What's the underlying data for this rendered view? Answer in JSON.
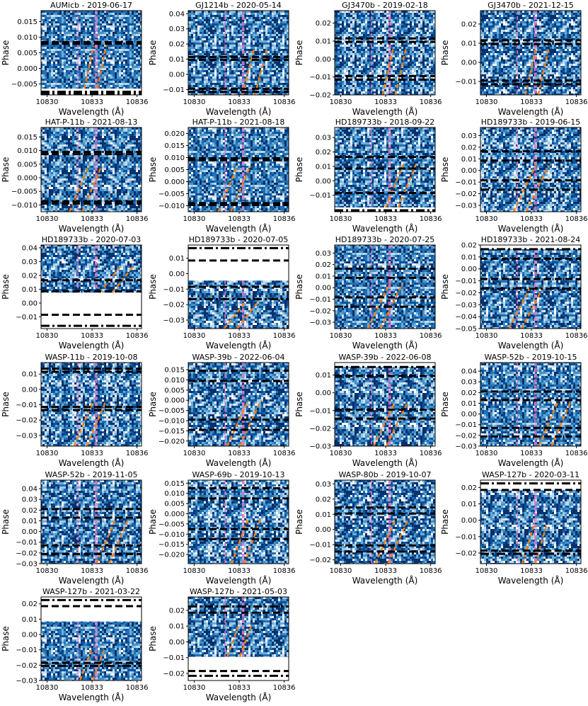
{
  "figure": {
    "xlabel": "Wavelength (Å)",
    "ylabel": "Phase",
    "colormap": [
      "#08306b",
      "#08519c",
      "#2171b5",
      "#4292c6",
      "#6baed6",
      "#9ecae1",
      "#c6dbef",
      "#ffffff"
    ],
    "line_colors": {
      "contact": "#000000",
      "planet_track": "#ff7f0e",
      "stellar_lines": "#e377c2"
    }
  },
  "chart_data": [
    {
      "type": "heatmap",
      "title": "AUMicb - 2019-06-17",
      "xlim": [
        10829.6,
        10836.3
      ],
      "ylim": [
        -0.0085,
        0.0185
      ],
      "xticks": [
        "10830",
        "10833",
        "10836"
      ],
      "yticks": [
        -0.005,
        0.0,
        0.005,
        0.01,
        0.015
      ],
      "ytick_labels": [
        "−0.005",
        "0.000",
        "0.005",
        "0.010",
        "0.015"
      ],
      "data_range": [
        -0.0065,
        0.0185
      ],
      "dashed": [
        0.0084,
        0.0079
      ],
      "dashdot": [
        -0.0075,
        -0.0082
      ],
      "track": [
        10832.5,
        10833.1
      ]
    },
    {
      "type": "heatmap",
      "title": "GJ1214b - 2020-05-14",
      "xlim": [
        10829.6,
        10836.3
      ],
      "ylim": [
        -0.0135,
        0.042
      ],
      "xticks": [
        "10830",
        "10833",
        "10836"
      ],
      "yticks": [
        -0.01,
        0.0,
        0.01,
        0.02,
        0.03,
        0.04
      ],
      "ytick_labels": [
        "−0.01",
        "0.00",
        "0.01",
        "0.02",
        "0.03",
        "0.04"
      ],
      "data_range": [
        -0.0135,
        0.042
      ],
      "dashed": [
        0.0115,
        0.0095,
        -0.0095,
        -0.0115
      ],
      "dashdot": [],
      "track": [
        10833.2,
        10834.0
      ]
    },
    {
      "type": "heatmap",
      "title": "GJ3470b - 2019-02-18",
      "xlim": [
        10829.6,
        10836.3
      ],
      "ylim": [
        -0.02,
        0.027
      ],
      "xticks": [
        "10830",
        "10833",
        "10836"
      ],
      "yticks": [
        -0.02,
        -0.01,
        0.0,
        0.01,
        0.02
      ],
      "ytick_labels": [
        "−0.02",
        "−0.01",
        "0.00",
        "0.01",
        "0.02"
      ],
      "data_range": [
        -0.02,
        0.027
      ],
      "dashed": [
        0.0115,
        0.0095,
        -0.0095,
        -0.0115
      ],
      "dashdot": [],
      "track": [
        10832.8,
        10833.5
      ]
    },
    {
      "type": "heatmap",
      "title": "GJ3470b - 2021-12-15",
      "xlim": [
        10829.6,
        10836.3
      ],
      "ylim": [
        -0.017,
        0.027
      ],
      "xticks": [
        "10830",
        "10833",
        "10836"
      ],
      "yticks": [
        -0.01,
        0.0,
        0.01,
        0.02
      ],
      "ytick_labels": [
        "−0.01",
        "0.00",
        "0.01",
        "0.02"
      ],
      "data_range": [
        -0.017,
        0.027
      ],
      "dashed": [
        0.0115,
        0.0095,
        -0.0095,
        -0.0115
      ],
      "dashdot": [],
      "track": [
        10832.6,
        10833.3
      ]
    },
    {
      "type": "heatmap",
      "title": "HAT-P-11b - 2021-08-13",
      "xlim": [
        10829.6,
        10836.3
      ],
      "ylim": [
        -0.0125,
        0.0185
      ],
      "xticks": [
        "10830",
        "10833",
        "10836"
      ],
      "yticks": [
        -0.01,
        -0.005,
        0.0,
        0.005,
        0.01,
        0.015
      ],
      "ytick_labels": [
        "−0.010",
        "−0.005",
        "0.000",
        "0.005",
        "0.010",
        "0.015"
      ],
      "data_range": [
        -0.0125,
        0.0185
      ],
      "dashed": [
        0.0095,
        0.0087,
        -0.0087,
        -0.0095
      ],
      "dashdot": [],
      "track": [
        10831.5,
        10832.8
      ]
    },
    {
      "type": "heatmap",
      "title": "HAT-P-11b - 2021-08-18",
      "xlim": [
        10829.6,
        10836.3
      ],
      "ylim": [
        -0.0125,
        0.0225
      ],
      "xticks": [
        "10830",
        "10833",
        "10836"
      ],
      "yticks": [
        -0.01,
        -0.005,
        0.0,
        0.005,
        0.01,
        0.015,
        0.02
      ],
      "ytick_labels": [
        "−0.010",
        "−0.005",
        "0.000",
        "0.005",
        "0.010",
        "0.015",
        "0.020"
      ],
      "data_range": [
        -0.0125,
        0.0225
      ],
      "dashed": [
        0.0097,
        0.0089,
        -0.0089,
        -0.0097
      ],
      "dashdot": [],
      "track": [
        10831.6,
        10832.9
      ]
    },
    {
      "type": "heatmap",
      "title": "HD189733b - 2018-09-22",
      "xlim": [
        10829.6,
        10836.3
      ],
      "ylim": [
        -0.0215,
        0.037
      ],
      "xticks": [
        "10830",
        "10833",
        "10836"
      ],
      "yticks": [
        -0.01,
        0.0,
        0.01,
        0.02,
        0.03
      ],
      "ytick_labels": [
        "−0.01",
        "0.00",
        "0.01",
        "0.02",
        "0.03"
      ],
      "data_range": [
        -0.0185,
        0.037
      ],
      "dashed": [
        0.0165,
        0.0085,
        -0.0085
      ],
      "dashdot": [
        -0.0205
      ],
      "track": [
        10833.0,
        10834.2
      ]
    },
    {
      "type": "heatmap",
      "title": "HD189733b - 2019-06-15",
      "xlim": [
        10829.6,
        10836.3
      ],
      "ylim": [
        -0.0355,
        0.037
      ],
      "xticks": [
        "10830",
        "10833",
        "10836"
      ],
      "yticks": [
        -0.03,
        -0.02,
        -0.01,
        0.0,
        0.01,
        0.02,
        0.03
      ],
      "ytick_labels": [
        "−0.03",
        "−0.02",
        "−0.01",
        "0.00",
        "0.01",
        "0.02",
        "0.03"
      ],
      "data_range": [
        -0.0355,
        0.037
      ],
      "dashed": [
        0.0165,
        0.0085,
        -0.0085
      ],
      "dashdot": [
        -0.0165
      ],
      "track": [
        10831.8,
        10833.3
      ]
    },
    {
      "type": "heatmap",
      "title": "HD189733b - 2020-07-03",
      "xlim": [
        10829.6,
        10836.3
      ],
      "ylim": [
        -0.0185,
        0.042
      ],
      "xticks": [
        "10830",
        "10833",
        "10836"
      ],
      "yticks": [
        -0.01,
        0.0,
        0.01,
        0.02,
        0.03,
        0.04
      ],
      "ytick_labels": [
        "−0.01",
        "0.00",
        "0.01",
        "0.02",
        "0.03",
        "0.04"
      ],
      "data_range": [
        0.0075,
        0.042
      ],
      "dashed": [
        0.0165,
        0.0085,
        -0.0085
      ],
      "dashdot": [
        -0.0165
      ],
      "track": [
        10833.5,
        10834.9
      ]
    },
    {
      "type": "heatmap",
      "title": "HD189733b - 2020-07-05",
      "xlim": [
        10829.6,
        10836.3
      ],
      "ylim": [
        -0.0355,
        0.0185
      ],
      "xticks": [
        "10830",
        "10833",
        "10836"
      ],
      "yticks": [
        -0.03,
        -0.02,
        -0.01,
        0.0,
        0.01
      ],
      "ytick_labels": [
        "−0.03",
        "−0.02",
        "−0.01",
        "0.00",
        "0.01"
      ],
      "data_range": [
        -0.0355,
        -0.0045
      ],
      "dashed": [
        0.0085,
        -0.0085
      ],
      "dashdot": [
        0.0165,
        -0.0165
      ],
      "track": [
        10832.0,
        10833.4
      ]
    },
    {
      "type": "heatmap",
      "title": "HD189733b - 2020-07-25",
      "xlim": [
        10829.6,
        10836.3
      ],
      "ylim": [
        -0.0355,
        0.037
      ],
      "xticks": [
        "10830",
        "10833",
        "10836"
      ],
      "yticks": [
        -0.03,
        -0.02,
        -0.01,
        0.0,
        0.01,
        0.02,
        0.03
      ],
      "ytick_labels": [
        "−0.03",
        "−0.02",
        "−0.01",
        "0.00",
        "0.01",
        "0.02",
        "0.03"
      ],
      "data_range": [
        -0.0355,
        0.037
      ],
      "dashed": [
        0.0165,
        0.0085,
        -0.0085
      ],
      "dashdot": [
        -0.0165
      ],
      "track": [
        10831.8,
        10833.3
      ]
    },
    {
      "type": "heatmap",
      "title": "HD189733b - 2021-08-24",
      "xlim": [
        10829.6,
        10836.3
      ],
      "ylim": [
        -0.05,
        0.02
      ],
      "xticks": [
        "10830",
        "10833",
        "10836"
      ],
      "yticks": [
        -0.05,
        -0.04,
        -0.03,
        -0.02,
        -0.01,
        0.0,
        0.01,
        0.02
      ],
      "ytick_labels": [
        "−0.05",
        "−0.04",
        "−0.03",
        "−0.02",
        "−0.01",
        "0.00",
        "0.01",
        "0.02"
      ],
      "data_range": [
        -0.05,
        0.0165
      ],
      "dashed": [
        0.0085,
        -0.0085
      ],
      "dashdot": [
        0.0165,
        -0.0165
      ],
      "track": [
        10831.5,
        10833.0
      ]
    },
    {
      "type": "heatmap",
      "title": "WASP-11b - 2019-10-08",
      "xlim": [
        10829.6,
        10836.3
      ],
      "ylim": [
        -0.037,
        0.0175
      ],
      "xticks": [
        "10830",
        "10833",
        "10836"
      ],
      "yticks": [
        -0.03,
        -0.02,
        -0.01,
        0.0,
        0.01
      ],
      "ytick_labels": [
        "−0.03",
        "−0.02",
        "−0.01",
        "0.00",
        "0.01"
      ],
      "data_range": [
        -0.037,
        0.0175
      ],
      "dashed": [
        0.0135,
        0.0115,
        -0.0115,
        -0.0135
      ],
      "dashdot": [],
      "track": [
        10831.8,
        10833.1
      ]
    },
    {
      "type": "heatmap",
      "title": "WASP-39b - 2022-06-04",
      "xlim": [
        10829.6,
        10836.3
      ],
      "ylim": [
        -0.0225,
        0.0185
      ],
      "xticks": [
        "10830",
        "10833",
        "10836"
      ],
      "yticks": [
        -0.02,
        -0.015,
        -0.01,
        -0.005,
        0.0,
        0.005,
        0.01,
        0.015
      ],
      "ytick_labels": [
        "−0.020",
        "−0.015",
        "−0.010",
        "−0.005",
        "0.000",
        "0.005",
        "0.010",
        "0.015"
      ],
      "data_range": [
        -0.0225,
        0.0185
      ],
      "dashed": [
        0.0145,
        0.0095,
        -0.0095,
        -0.0145
      ],
      "dashdot": [],
      "track": [
        10832.2,
        10833.6
      ]
    },
    {
      "type": "heatmap",
      "title": "WASP-39b - 2022-06-08",
      "xlim": [
        10829.6,
        10836.3
      ],
      "ylim": [
        -0.03,
        0.017
      ],
      "xticks": [
        "10830",
        "10833",
        "10836"
      ],
      "yticks": [
        -0.03,
        -0.02,
        -0.01,
        0.0,
        0.01
      ],
      "ytick_labels": [
        "−0.03",
        "−0.02",
        "−0.01",
        "0.00",
        "0.01"
      ],
      "data_range": [
        -0.03,
        0.0145
      ],
      "dashed": [
        0.0095,
        -0.0095,
        -0.0145
      ],
      "dashdot": [
        0.0145
      ],
      "track": [
        10832.2,
        10833.6
      ]
    },
    {
      "type": "heatmap",
      "title": "WASP-52b - 2019-10-15",
      "xlim": [
        10829.6,
        10836.3
      ],
      "ylim": [
        -0.03,
        0.048
      ],
      "xticks": [
        "10830",
        "10833",
        "10836"
      ],
      "yticks": [
        -0.03,
        -0.02,
        -0.01,
        0.0,
        0.01,
        0.02,
        0.03,
        0.04
      ],
      "ytick_labels": [
        "−0.03",
        "−0.02",
        "−0.01",
        "0.00",
        "0.01",
        "0.02",
        "0.03",
        "0.04"
      ],
      "data_range": [
        -0.03,
        0.048
      ],
      "dashed": [
        0.021,
        0.013,
        -0.013,
        -0.021
      ],
      "dashdot": [],
      "track": [
        10833.5,
        10834.8
      ]
    },
    {
      "type": "heatmap",
      "title": "WASP-52b - 2019-11-05",
      "xlim": [
        10829.6,
        10836.3
      ],
      "ylim": [
        -0.03,
        0.048
      ],
      "xticks": [
        "10830",
        "10833",
        "10836"
      ],
      "yticks": [
        -0.03,
        -0.02,
        -0.01,
        0.0,
        0.01,
        0.02,
        0.03,
        0.04
      ],
      "ytick_labels": [
        "−0.03",
        "−0.02",
        "−0.01",
        "0.00",
        "0.01",
        "0.02",
        "0.03",
        "0.04"
      ],
      "data_range": [
        -0.03,
        0.048
      ],
      "dashed": [
        0.021,
        0.013,
        -0.013,
        -0.021
      ],
      "dashdot": [],
      "track": [
        10833.3,
        10834.6
      ]
    },
    {
      "type": "heatmap",
      "title": "WASP-69b - 2019-10-13",
      "xlim": [
        10829.6,
        10836.3
      ],
      "ylim": [
        -0.0245,
        0.0165
      ],
      "xticks": [
        "10830",
        "10833",
        "10836"
      ],
      "yticks": [
        -0.02,
        -0.015,
        -0.01,
        -0.005,
        0.0,
        0.005,
        0.01,
        0.015
      ],
      "ytick_labels": [
        "−0.020",
        "−0.015",
        "−0.010",
        "−0.005",
        "0.000",
        "0.005",
        "0.010",
        "0.015"
      ],
      "data_range": [
        -0.0245,
        0.0165
      ],
      "dashed": [
        0.0125,
        0.0075,
        -0.0075,
        -0.0125
      ],
      "dashdot": [],
      "track": [
        10832.5,
        10833.6
      ]
    },
    {
      "type": "heatmap",
      "title": "WASP-80b - 2019-10-07",
      "xlim": [
        10829.6,
        10836.3
      ],
      "ylim": [
        -0.0225,
        0.0325
      ],
      "xticks": [
        "10830",
        "10833",
        "10836"
      ],
      "yticks": [
        -0.02,
        -0.01,
        0.0,
        0.01,
        0.02,
        0.03
      ],
      "ytick_labels": [
        "−0.02",
        "−0.01",
        "0.00",
        "0.01",
        "0.02",
        "0.03"
      ],
      "data_range": [
        -0.0225,
        0.0325
      ],
      "dashed": [
        0.0145,
        0.0105,
        -0.0105,
        -0.0145
      ],
      "dashdot": [],
      "track": [
        10832.3,
        10833.7
      ]
    },
    {
      "type": "heatmap",
      "title": "WASP-127b - 2020-03-11",
      "xlim": [
        10829.6,
        10836.3
      ],
      "ylim": [
        -0.0265,
        0.0245
      ],
      "xticks": [
        "10830",
        "10833",
        "10836"
      ],
      "yticks": [
        -0.02,
        -0.01,
        0.0,
        0.01,
        0.02
      ],
      "ytick_labels": [
        "−0.02",
        "−0.01",
        "0.00",
        "0.01",
        "0.02"
      ],
      "data_range": [
        -0.0265,
        0.0185
      ],
      "dashed": [
        0.0185,
        -0.0185
      ],
      "dashdot": [
        0.0225,
        -0.0205
      ],
      "track": [
        10832.4,
        10833.2
      ]
    },
    {
      "type": "heatmap",
      "title": "WASP-127b - 2021-03-22",
      "xlim": [
        10829.6,
        10836.3
      ],
      "ylim": [
        -0.03,
        0.0245
      ],
      "xticks": [
        "10830",
        "10833",
        "10836"
      ],
      "yticks": [
        -0.03,
        -0.02,
        -0.01,
        0.0,
        0.01,
        0.02
      ],
      "ytick_labels": [
        "−0.03",
        "−0.02",
        "−0.01",
        "0.00",
        "0.01",
        "0.02"
      ],
      "data_range": [
        -0.03,
        0.0085
      ],
      "dashed": [
        0.0185,
        -0.0185
      ],
      "dashdot": [
        0.0225,
        -0.0205
      ],
      "track": [
        10832.2,
        10833.0
      ]
    },
    {
      "type": "heatmap",
      "title": "WASP-127b - 2021-05-03",
      "xlim": [
        10829.6,
        10836.3
      ],
      "ylim": [
        -0.0245,
        0.0285
      ],
      "xticks": [
        "10830",
        "10833",
        "10836"
      ],
      "yticks": [
        -0.02,
        -0.01,
        0.0,
        0.01,
        0.02
      ],
      "ytick_labels": [
        "−0.02",
        "−0.01",
        "0.00",
        "0.01",
        "0.02"
      ],
      "data_range": [
        -0.0095,
        0.0285
      ],
      "dashed": [
        0.0185,
        -0.0185
      ],
      "dashdot": [
        0.0225,
        -0.0215
      ],
      "track": [
        10832.2,
        10833.0
      ]
    }
  ]
}
